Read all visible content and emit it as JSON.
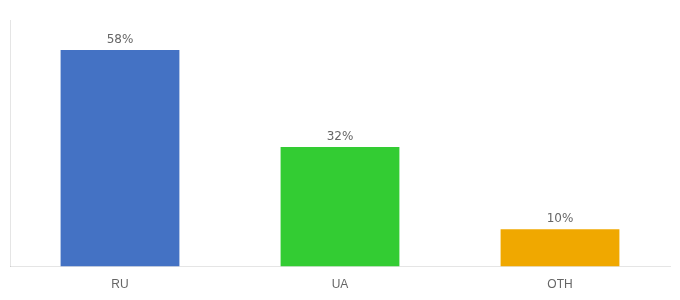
{
  "chart_data": {
    "type": "bar",
    "categories": [
      "RU",
      "UA",
      "OTH"
    ],
    "values": [
      58,
      32,
      10
    ],
    "value_labels": [
      "58%",
      "32%",
      "10%"
    ],
    "colors": [
      "#4472c4",
      "#33cc33",
      "#f0a800"
    ],
    "ylim": [
      0,
      66
    ],
    "data_labels": true,
    "tick_labels": "x",
    "grid": false
  }
}
